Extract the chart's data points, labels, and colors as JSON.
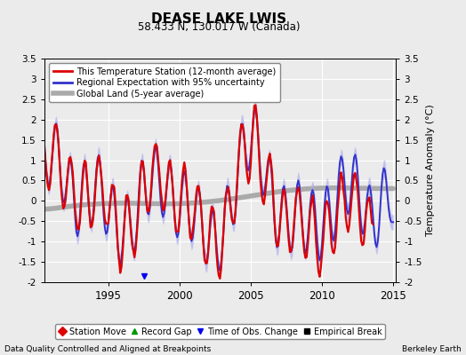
{
  "title": "DEASE LAKE LWIS",
  "subtitle": "58.433 N, 130.017 W (Canada)",
  "ylabel": "Temperature Anomaly (°C)",
  "xlabel_left": "Data Quality Controlled and Aligned at Breakpoints",
  "xlabel_right": "Berkeley Earth",
  "ylim": [
    -2.0,
    3.5
  ],
  "xlim": [
    1990.5,
    2015.2
  ],
  "xticks": [
    1995,
    2000,
    2005,
    2010,
    2015
  ],
  "yticks": [
    -2,
    -1.5,
    -1,
    -0.5,
    0,
    0.5,
    1,
    1.5,
    2,
    2.5,
    3,
    3.5
  ],
  "regional_color": "#3333CC",
  "regional_fill_color": "#AAAAEE",
  "station_color": "#DD0000",
  "global_color": "#AAAAAA",
  "background_color": "#EBEBEB",
  "grid_color": "#FFFFFF",
  "time_of_obs_change_year": 1997.5
}
